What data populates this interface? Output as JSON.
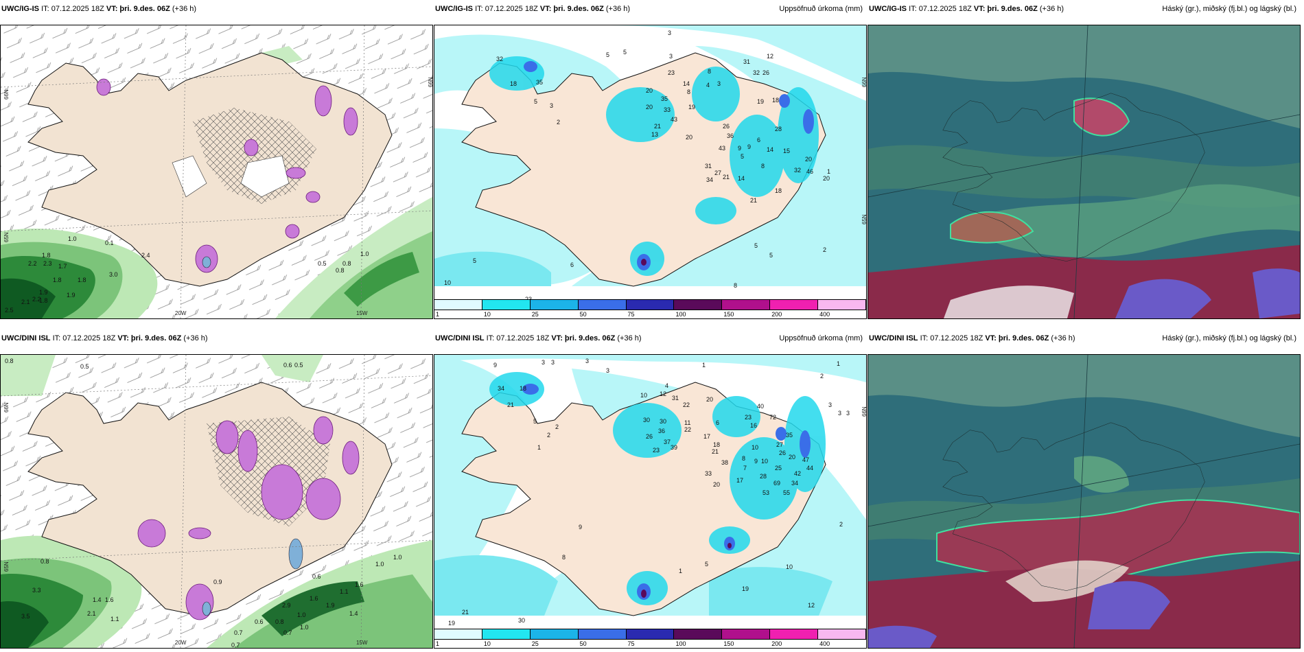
{
  "panels": [
    {
      "model": "UWC/IG-IS",
      "it": "IT: 07.12.2025 18Z",
      "vt_label": "VT:",
      "vt": "þri. 9.des. 06Z",
      "lead": "(+36 h)",
      "right_title": ""
    },
    {
      "model": "UWC/IG-IS",
      "it": "IT: 07.12.2025 18Z",
      "vt_label": "VT:",
      "vt": "þri. 9.des. 06Z",
      "lead": "(+36 h)",
      "right_title": "Uppsöfnuð úrkoma (mm)"
    },
    {
      "model": "UWC/IG-IS",
      "it": "IT: 07.12.2025 18Z",
      "vt_label": "VT:",
      "vt": "þri. 9.des. 06Z",
      "lead": "(+36 h)",
      "right_title": "Háský (gr.), miðský (fj.bl.) og lágský (bl.)"
    },
    {
      "model": "UWC/DINI ISL",
      "it": "IT: 07.12.2025 18Z",
      "vt_label": "VT:",
      "vt": "þri. 9.des. 06Z",
      "lead": "(+36 h)",
      "right_title": ""
    },
    {
      "model": "UWC/DINI ISL",
      "it": "IT: 07.12.2025 18Z",
      "vt_label": "VT:",
      "vt": "þri. 9.des. 06Z",
      "lead": "(+36 h)",
      "right_title": "Uppsöfnuð úrkoma (mm)"
    },
    {
      "model": "UWC/DINI ISL",
      "it": "IT: 07.12.2025 18Z",
      "vt_label": "VT:",
      "vt": "þri. 9.des. 06Z",
      "lead": "(+36 h)",
      "right_title": "Háský (gr.), miðský (fj.bl.) og lágský (bl.)"
    }
  ],
  "axes": {
    "lon_20w": "20W",
    "lon_15w": "15W",
    "lat_66n": "66N",
    "lat_65n": "65N"
  },
  "colorbar": {
    "ticks": [
      "1",
      "10",
      "25",
      "50",
      "75",
      "100",
      "150",
      "200",
      "400"
    ],
    "colors": [
      "#e0fbff",
      "#22e6f0",
      "#1cb4e8",
      "#3a6ee8",
      "#2a2ab0",
      "#5a0a5a",
      "#b0108c",
      "#f020b0",
      "#f8b8f0"
    ]
  },
  "labels": {
    "top_wind": [
      "1.0",
      "0.1",
      "2.4",
      "1.8",
      "2.2",
      "2.3",
      "1.7",
      "1.8",
      "1.8",
      "1.9",
      "3.0",
      "1.9",
      "1.8",
      "2.2",
      "2.1",
      "2.5",
      "0.5",
      "0.8",
      "0.8",
      "1.0"
    ],
    "bottom_wind": [
      "0.8",
      "0.5",
      "0.6",
      "0.5",
      "0.8",
      "3.3",
      "1.4",
      "1.6",
      "2.1",
      "3.5",
      "0.9",
      "0.7",
      "1.0",
      "0.6",
      "1.0",
      "1.0",
      "1.6",
      "1.1",
      "1.4",
      "1.6",
      "1.9",
      "2.9",
      "0.8",
      "0.6",
      "0.7",
      "1.0",
      "0.7",
      "1.1"
    ],
    "top_precip": [
      "3",
      "5",
      "5",
      "3",
      "32",
      "18",
      "35",
      "5",
      "3",
      "2",
      "23",
      "14",
      "8",
      "4",
      "3",
      "31",
      "12",
      "32",
      "26",
      "20",
      "35",
      "20",
      "33",
      "8",
      "19",
      "43",
      "21",
      "26",
      "13",
      "20",
      "36",
      "18",
      "6",
      "43",
      "9",
      "5",
      "19",
      "28",
      "15",
      "14",
      "9",
      "31",
      "27",
      "21",
      "8",
      "20",
      "32",
      "46",
      "34",
      "14",
      "21",
      "18",
      "20",
      "5",
      "5",
      "2",
      "5",
      "6",
      "10",
      "23",
      "8",
      "1"
    ],
    "bottom_precip": [
      "9",
      "3",
      "3",
      "3",
      "3",
      "34",
      "18",
      "21",
      "5",
      "2",
      "2",
      "1",
      "10",
      "12",
      "4",
      "30",
      "36",
      "31",
      "22",
      "20",
      "30",
      "6",
      "11",
      "26",
      "37",
      "22",
      "23",
      "39",
      "40",
      "23",
      "16",
      "27",
      "26",
      "72",
      "35",
      "21",
      "17",
      "18",
      "10",
      "25",
      "8",
      "9",
      "10",
      "20",
      "47",
      "44",
      "42",
      "7",
      "38",
      "33",
      "17",
      "34",
      "20",
      "69",
      "28",
      "53",
      "55",
      "3",
      "3",
      "1",
      "3",
      "1",
      "2",
      "2",
      "10",
      "19",
      "12",
      "21",
      "30",
      "19",
      "5",
      "9",
      "8",
      "1"
    ]
  }
}
